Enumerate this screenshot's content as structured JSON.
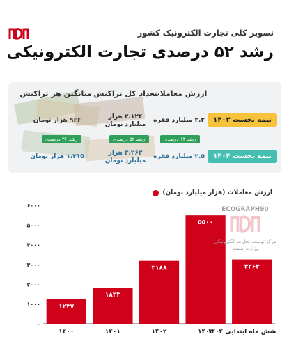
{
  "header": {
    "subtitle": "تصویر کلی تجارت الکترونیک کشور",
    "title": "رشد ۵۲ درصدی تجارت الکترونیکی"
  },
  "table": {
    "columns": [
      "ارزش معاملات",
      "تعداد کل تراکنش",
      "میانگین هر تراکنش"
    ],
    "rows": [
      {
        "label": "نیمه نخست ۱۴۰۳",
        "value": "۲.۲ میلیارد فقره",
        "count": "۲،۱۲۴ هزار میلیارد تومان",
        "avg": "۹۶۶ هزار تومان"
      },
      {
        "label": "نیمه نخست ۱۴۰۴",
        "value": "۲.۵ میلیارد فقره",
        "count": "۳،۲۶۳ هزار میلیارد تومان",
        "avg": "۱،۳۱۵ هزار تومان"
      }
    ],
    "growth": {
      "value": "رشد ۱۴ درصدی",
      "count": "رشد ۵۲ درصدی",
      "avg": "رشد ۳۶ درصدی"
    }
  },
  "brand": {
    "site": "ECOGRAPH90",
    "org": "مرکز توسعه تجارت الکترونیکی وزارت صمت"
  },
  "chart_data": {
    "type": "bar",
    "legend": "ارزش معاملات (هزار میلیارد تومان)",
    "categories": [
      "۱۴۰۰",
      "۱۴۰۱",
      "۱۴۰۲",
      "۱۴۰۳",
      "شش ماه ابتدایی ۱۴۰۴"
    ],
    "values": [
      1237,
      1833,
      3188,
      5500,
      3263
    ],
    "value_labels": [
      "۱۲۳۷",
      "۱۸۳۳",
      "۳۱۸۸",
      "۵۵۰۰",
      "۳۲۶۳"
    ],
    "yticks": [
      0,
      1000,
      2000,
      3000,
      4000,
      5000,
      6000
    ],
    "ytick_labels": [
      "۰",
      "۱۰۰۰",
      "۲۰۰۰",
      "۳۰۰۰",
      "۴۰۰۰",
      "۵۰۰۰",
      "۶۰۰۰"
    ],
    "ylim": [
      0,
      6000
    ],
    "grid": false,
    "color": "#d0021b"
  }
}
